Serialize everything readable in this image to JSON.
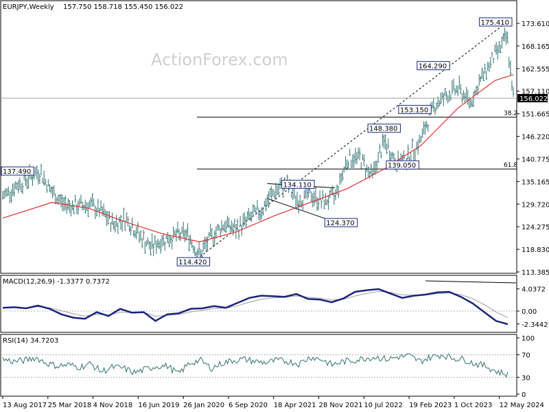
{
  "header": {
    "symbol": "EURJPY,Weekly",
    "ohlc": "157.750 158.718 155.450 156.022"
  },
  "watermark": "ActionForex.com",
  "colors": {
    "price_bars": "#2f6f6f",
    "moving_average": "#e03030",
    "macd_line": "#1a237e",
    "macd_signal": "#9e9e9e",
    "annotation_border": "#1a237e",
    "fib_line": "#000000",
    "trendline": "#000000"
  },
  "chart_data": [
    {
      "type": "line",
      "title": "EURJPY,Weekly",
      "header_values": "157.750 158.718 155.450 156.022",
      "x_tick_labels": [
        "13 Aug 2017",
        "25 Mar 2018",
        "4 Nov 2018",
        "16 Jun 2019",
        "26 Jan 2020",
        "6 Sep 2020",
        "18 Apr 2021",
        "28 Nov 2021",
        "10 Jul 2022",
        "19 Feb 2023",
        "1 Oct 2023",
        "12 May 2024"
      ],
      "y_tick_labels": [
        "173.610",
        "168.165",
        "162.555",
        "157.110",
        "151.665",
        "146.220",
        "140.775",
        "135.165",
        "129.720",
        "124.275",
        "118.830",
        "113.385"
      ],
      "ylim": [
        112,
        177.5
      ],
      "current_price": "156.022",
      "price_series": {
        "x": [
          "2017-08",
          "2017-10",
          "2017-12",
          "2018-02",
          "2018-04",
          "2018-06",
          "2018-08",
          "2018-10",
          "2018-12",
          "2019-02",
          "2019-04",
          "2019-06",
          "2019-08",
          "2019-10",
          "2019-12",
          "2020-02",
          "2020-04",
          "2020-06",
          "2020-08",
          "2020-10",
          "2020-12",
          "2021-02",
          "2021-04",
          "2021-06",
          "2021-08",
          "2021-10",
          "2021-12",
          "2022-02",
          "2022-04",
          "2022-06",
          "2022-08",
          "2022-10",
          "2022-12",
          "2023-02",
          "2023-04",
          "2023-06",
          "2023-08",
          "2023-10",
          "2023-12",
          "2024-02",
          "2024-04",
          "2024-06",
          "2024-07"
        ],
        "y": [
          131.0,
          133.5,
          135.5,
          137.5,
          132.0,
          129.0,
          128.5,
          129.0,
          127.0,
          124.0,
          125.5,
          121.5,
          118.0,
          120.0,
          121.0,
          121.5,
          116.0,
          121.0,
          124.0,
          122.5,
          125.5,
          127.5,
          132.0,
          134.0,
          130.0,
          131.5,
          129.5,
          131.0,
          140.5,
          141.0,
          136.0,
          145.0,
          139.5,
          141.0,
          145.5,
          154.0,
          156.5,
          158.5,
          155.0,
          161.5,
          167.0,
          171.5,
          156.0
        ]
      },
      "moving_average": {
        "x": [
          "2017-08",
          "2018-04",
          "2018-10",
          "2019-04",
          "2019-10",
          "2020-04",
          "2020-10",
          "2021-04",
          "2021-10",
          "2022-04",
          "2022-10",
          "2023-04",
          "2023-10",
          "2024-04",
          "2024-07"
        ],
        "y": [
          125.5,
          129.5,
          128.0,
          124.5,
          121.5,
          119.5,
          122.0,
          126.0,
          129.5,
          133.0,
          138.0,
          144.0,
          153.5,
          160.5,
          162.0
        ]
      },
      "annotations": [
        {
          "label": "137.490",
          "x": "2017-08",
          "y": 137.49
        },
        {
          "label": "114.420",
          "x": "2020-03",
          "y": 114.42
        },
        {
          "label": "134.110",
          "x": "2021-08",
          "y": 134.11
        },
        {
          "label": "124.370",
          "x": "2022-03",
          "y": 124.37
        },
        {
          "label": "148.380",
          "x": "2022-10",
          "y": 148.38
        },
        {
          "label": "139.050",
          "x": "2023-01",
          "y": 139.05
        },
        {
          "label": "153.150",
          "x": "2023-03",
          "y": 153.15
        },
        {
          "label": "164.290",
          "x": "2023-06",
          "y": 164.29
        },
        {
          "label": "175.410",
          "x": "2024-06",
          "y": 175.41
        }
      ],
      "fib_levels": [
        {
          "label": "38.2",
          "y": 151.2
        },
        {
          "label": "61.8",
          "y": 138.0
        }
      ]
    },
    {
      "type": "line",
      "title": "MACD(12,26,9) -1.3377 0.7372",
      "y_tick_labels": [
        "4.0372",
        "0.00",
        "-2.3442"
      ],
      "ylim": [
        -3.5,
        5.5
      ],
      "macd_series": [
        0.6,
        0.7,
        0.5,
        1.0,
        0.4,
        -0.6,
        -1.2,
        -1.4,
        -0.2,
        -0.9,
        0.4,
        -0.3,
        -0.2,
        -1.8,
        -0.6,
        -0.4,
        0.4,
        0.5,
        0.9,
        0.6,
        1.5,
        2.4,
        2.8,
        2.7,
        2.6,
        3.1,
        2.2,
        2.1,
        1.6,
        2.3,
        3.5,
        3.8,
        4.0,
        3.2,
        2.4,
        2.8,
        3.0,
        3.4,
        3.5,
        2.6,
        1.4,
        -0.2,
        -1.8,
        -2.4
      ],
      "zero_line": 0
    },
    {
      "type": "line",
      "title": "RSI(14) 34.7203",
      "y_tick_labels": [
        "100",
        "70",
        "30",
        "0"
      ],
      "ylim": [
        0,
        100
      ],
      "rsi_series": [
        62,
        58,
        60,
        65,
        55,
        50,
        52,
        48,
        54,
        40,
        48,
        46,
        38,
        44,
        50,
        50,
        36,
        55,
        60,
        46,
        55,
        60,
        62,
        58,
        56,
        60,
        58,
        54,
        66,
        62,
        52,
        58,
        60,
        64,
        66,
        62,
        66,
        68,
        58,
        66,
        70,
        64,
        62,
        54,
        50,
        40,
        35
      ],
      "levels": [
        70,
        30
      ]
    }
  ]
}
